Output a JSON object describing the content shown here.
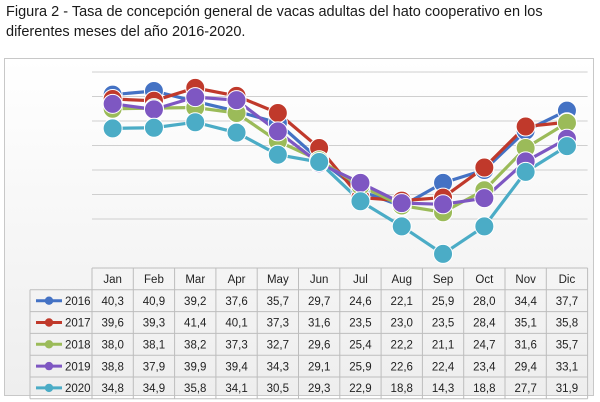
{
  "caption": "Figura 2 - Tasa de concepción general de vacas adultas del hato cooperativo en los diferentes meses del año 2016-2020.",
  "chart_data": {
    "type": "line",
    "categories": [
      "Jan",
      "Feb",
      "Mar",
      "Apr",
      "May",
      "Jun",
      "Jul",
      "Aug",
      "Sep",
      "Oct",
      "Nov",
      "Dic"
    ],
    "series": [
      {
        "name": "2016",
        "color": "#4472c4",
        "values": [
          "40,3",
          "40,9",
          "39,2",
          "37,6",
          "35,7",
          "29,7",
          "24,6",
          "22,1",
          "25,9",
          "28,0",
          "34,4",
          "37,7"
        ]
      },
      {
        "name": "2017",
        "color": "#c0392b",
        "values": [
          "39,6",
          "39,3",
          "41,4",
          "40,1",
          "37,3",
          "31,6",
          "23,5",
          "23,0",
          "23,5",
          "28,4",
          "35,1",
          "35,8"
        ]
      },
      {
        "name": "2018",
        "color": "#9bbb59",
        "values": [
          "38,0",
          "38,1",
          "38,2",
          "37,3",
          "32,7",
          "29,6",
          "25,4",
          "22,2",
          "21,1",
          "24,7",
          "31,6",
          "35,7"
        ]
      },
      {
        "name": "2019",
        "color": "#7e57c2",
        "values": [
          "38,8",
          "37,9",
          "39,9",
          "39,4",
          "34,3",
          "29,1",
          "25,9",
          "22,6",
          "22,4",
          "23,4",
          "29,4",
          "33,1"
        ]
      },
      {
        "name": "2020",
        "color": "#4bacc6",
        "values": [
          "34,8",
          "34,9",
          "35,8",
          "34,1",
          "30,5",
          "29,3",
          "22,9",
          "18,8",
          "14,3",
          "18,8",
          "27,7",
          "31,9"
        ]
      }
    ],
    "grid": true,
    "legend": "data-table-left"
  }
}
